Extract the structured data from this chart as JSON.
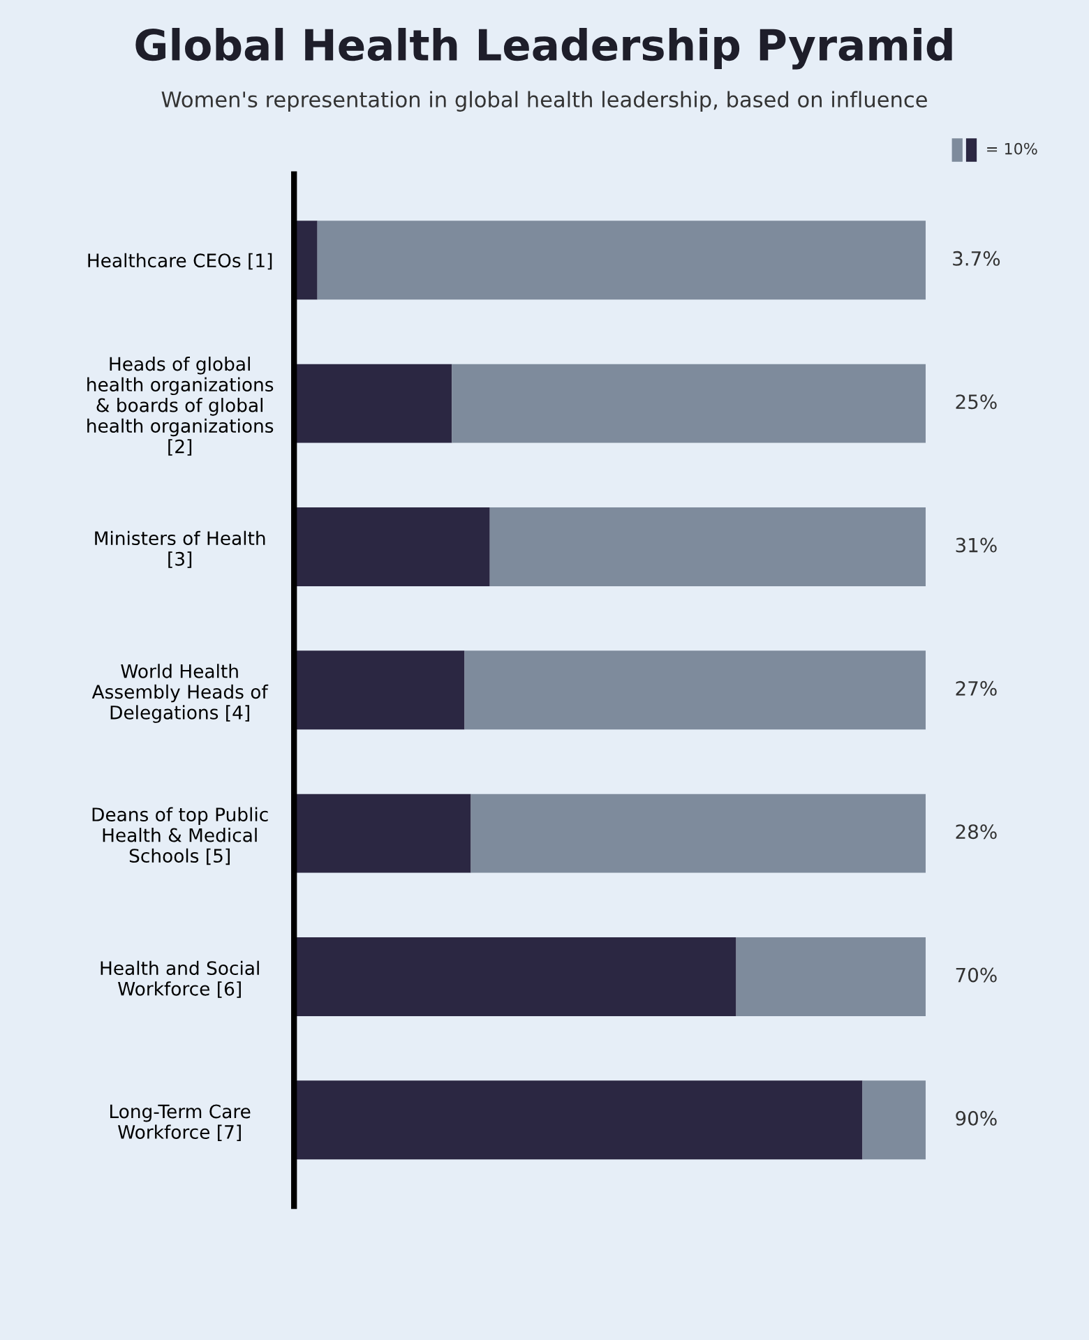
{
  "chart_data": {
    "type": "bar",
    "orientation": "horizontal",
    "stacked": true,
    "title": "Global Health Leadership Pyramid",
    "subtitle": "Women's representation in global health leadership, based on influence",
    "categories": [
      "Healthcare CEOs [1]",
      "Heads of global\nhealth organizations\n& boards of global\nhealth organizations\n[2]",
      "Ministers of Health\n[3]",
      "World Health\nAssembly Heads of\nDelegations [4]",
      "Deans of top Public\nHealth & Medical\nSchools [5]",
      "Health and Social\nWorkforce [6]",
      "Long-Term Care\nWorkforce [7]"
    ],
    "series": [
      {
        "color": "#2b2742",
        "values": [
          3.7,
          25,
          31,
          27,
          28,
          70,
          90
        ],
        "value_labels": [
          "3.7%",
          "25%",
          "31%",
          "27%",
          "28%",
          "70%",
          "90%"
        ]
      },
      {
        "color": "#7e8b9c",
        "values": [
          96.3,
          75,
          69,
          73,
          72,
          30,
          10
        ]
      }
    ],
    "xlim": [
      0,
      100
    ],
    "tick_labels": "y",
    "grid": false,
    "legend": false,
    "annotations": [
      "= 10%"
    ]
  }
}
